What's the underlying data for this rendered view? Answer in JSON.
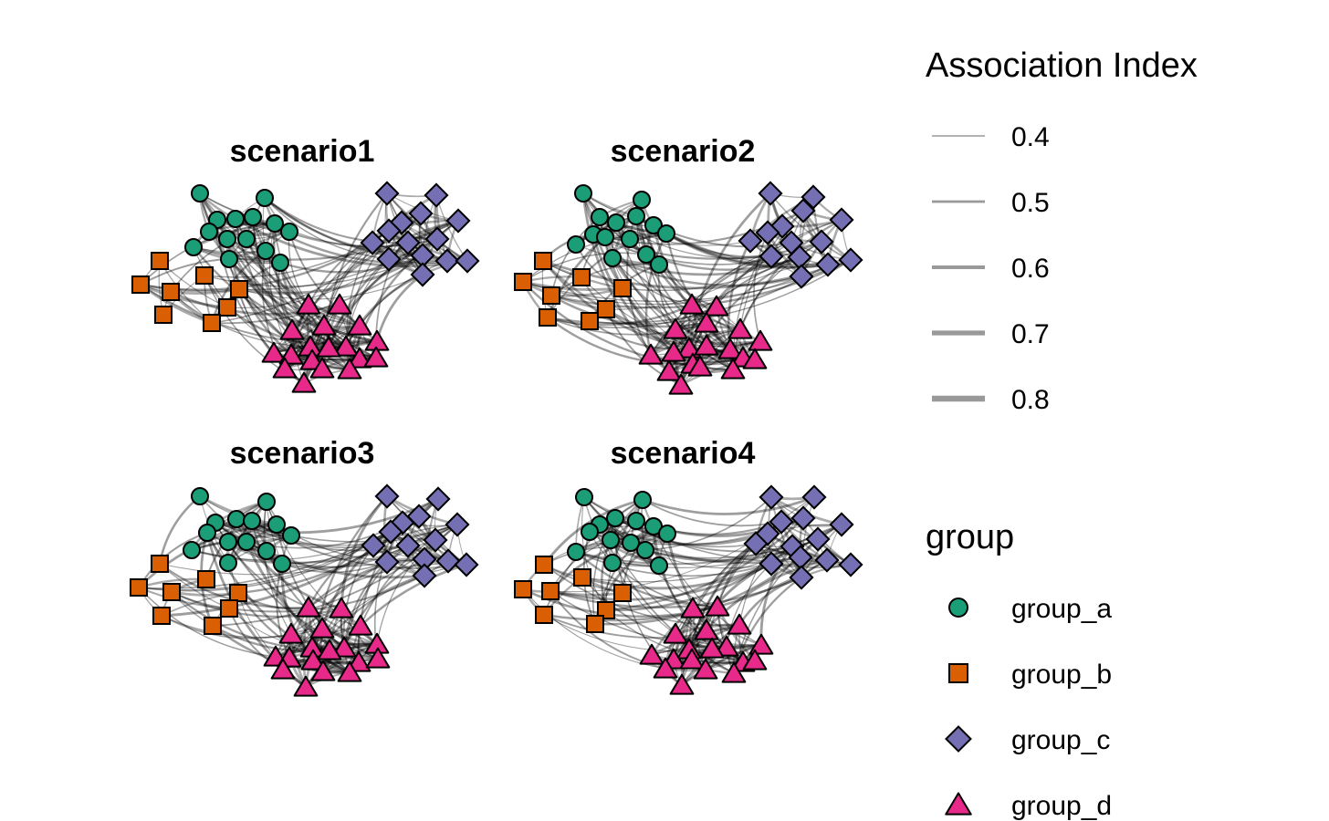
{
  "panels": [
    {
      "title": "scenario1"
    },
    {
      "title": "scenario2"
    },
    {
      "title": "scenario3"
    },
    {
      "title": "scenario4"
    }
  ],
  "legend_edges": {
    "title": "Association Index",
    "entries": [
      {
        "label": "0.4",
        "value": 0.4
      },
      {
        "label": "0.5",
        "value": 0.5
      },
      {
        "label": "0.6",
        "value": 0.6
      },
      {
        "label": "0.7",
        "value": 0.7
      },
      {
        "label": "0.8",
        "value": 0.8
      }
    ],
    "line_color": "#999999"
  },
  "legend_groups": {
    "title": "group",
    "entries": [
      {
        "label": "group_a",
        "shape": "circle",
        "color": "#1b9e77"
      },
      {
        "label": "group_b",
        "shape": "square",
        "color": "#d95f02"
      },
      {
        "label": "group_c",
        "shape": "diamond",
        "color": "#7570b3"
      },
      {
        "label": "group_d",
        "shape": "triangle",
        "color": "#e7298a"
      }
    ]
  }
}
